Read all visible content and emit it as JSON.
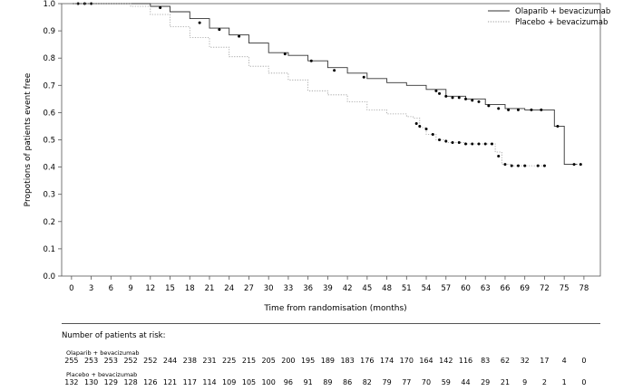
{
  "chart_data": {
    "type": "line",
    "title": "",
    "xlabel": "Time from randomisation (months)",
    "ylabel": "Propotions of patients event free",
    "xlim": [
      -1.5,
      80.5
    ],
    "ylim": [
      0,
      1.0
    ],
    "xticks": [
      0,
      3,
      6,
      9,
      12,
      15,
      18,
      21,
      24,
      27,
      30,
      33,
      36,
      39,
      42,
      45,
      48,
      51,
      54,
      57,
      60,
      63,
      66,
      69,
      72,
      75,
      78
    ],
    "yticks": [
      0.0,
      0.1,
      0.2,
      0.3,
      0.4,
      0.5,
      0.6,
      0.7,
      0.8,
      0.9,
      1.0
    ],
    "ytick_labels": [
      "0.0",
      "0.1",
      "0.2",
      "0.3",
      "0.4",
      "0.5",
      "0.6",
      "0.7",
      "0.8",
      "0.9",
      "1.0"
    ],
    "grid": false,
    "legend": "top-right",
    "series": [
      {
        "name": "Olaparib + bevacizumab",
        "color": "#333333",
        "dash": "solid",
        "points": [
          [
            0,
            1.0
          ],
          [
            10,
            1.0
          ],
          [
            12,
            0.99
          ],
          [
            15,
            0.97
          ],
          [
            18,
            0.945
          ],
          [
            21,
            0.91
          ],
          [
            24,
            0.885
          ],
          [
            27,
            0.855
          ],
          [
            30,
            0.82
          ],
          [
            33,
            0.81
          ],
          [
            36,
            0.79
          ],
          [
            39,
            0.765
          ],
          [
            42,
            0.745
          ],
          [
            45,
            0.725
          ],
          [
            48,
            0.71
          ],
          [
            51,
            0.7
          ],
          [
            54,
            0.685
          ],
          [
            57,
            0.66
          ],
          [
            60,
            0.65
          ],
          [
            63,
            0.63
          ],
          [
            66,
            0.615
          ],
          [
            69,
            0.61
          ],
          [
            72,
            0.61
          ],
          [
            73.5,
            0.55
          ],
          [
            75,
            0.41
          ],
          [
            77,
            0.41
          ]
        ],
        "censor": [
          [
            1,
            1.0
          ],
          [
            2,
            1.0
          ],
          [
            3,
            1.0
          ],
          [
            13.5,
            0.985
          ],
          [
            19.5,
            0.93
          ],
          [
            22.5,
            0.905
          ],
          [
            25.5,
            0.88
          ],
          [
            32.5,
            0.815
          ],
          [
            36.5,
            0.79
          ],
          [
            40,
            0.755
          ],
          [
            44.5,
            0.73
          ],
          [
            55.5,
            0.68
          ],
          [
            56,
            0.67
          ],
          [
            57,
            0.66
          ],
          [
            58,
            0.655
          ],
          [
            59,
            0.655
          ],
          [
            60,
            0.65
          ],
          [
            61,
            0.645
          ],
          [
            62,
            0.64
          ],
          [
            63.5,
            0.625
          ],
          [
            65,
            0.615
          ],
          [
            66.5,
            0.61
          ],
          [
            68,
            0.61
          ],
          [
            70,
            0.61
          ],
          [
            71.5,
            0.61
          ],
          [
            74,
            0.55
          ],
          [
            76.5,
            0.41
          ],
          [
            77.5,
            0.41
          ]
        ]
      },
      {
        "name": "Placebo + bevacizumab",
        "color": "#999999",
        "dash": "dotted",
        "points": [
          [
            0,
            1.0
          ],
          [
            9,
            0.99
          ],
          [
            12,
            0.96
          ],
          [
            15,
            0.915
          ],
          [
            18,
            0.875
          ],
          [
            21,
            0.84
          ],
          [
            24,
            0.805
          ],
          [
            27,
            0.77
          ],
          [
            30,
            0.745
          ],
          [
            33,
            0.72
          ],
          [
            36,
            0.68
          ],
          [
            39,
            0.665
          ],
          [
            42,
            0.64
          ],
          [
            45,
            0.61
          ],
          [
            48,
            0.595
          ],
          [
            51,
            0.585
          ],
          [
            52,
            0.58
          ],
          [
            53,
            0.545
          ],
          [
            54,
            0.52
          ],
          [
            55.5,
            0.5
          ],
          [
            57,
            0.49
          ],
          [
            60,
            0.485
          ],
          [
            63,
            0.485
          ],
          [
            64.5,
            0.455
          ],
          [
            65.5,
            0.41
          ],
          [
            67,
            0.405
          ],
          [
            72,
            0.405
          ]
        ],
        "censor": [
          [
            52.5,
            0.56
          ],
          [
            53,
            0.55
          ],
          [
            54,
            0.54
          ],
          [
            55,
            0.52
          ],
          [
            56,
            0.5
          ],
          [
            57,
            0.495
          ],
          [
            58,
            0.49
          ],
          [
            59,
            0.49
          ],
          [
            60,
            0.485
          ],
          [
            61,
            0.485
          ],
          [
            62,
            0.485
          ],
          [
            63,
            0.485
          ],
          [
            64,
            0.485
          ],
          [
            65,
            0.44
          ],
          [
            66,
            0.41
          ],
          [
            67,
            0.405
          ],
          [
            68,
            0.405
          ],
          [
            69,
            0.405
          ],
          [
            71,
            0.405
          ],
          [
            72,
            0.405
          ]
        ]
      }
    ]
  },
  "risk_table": {
    "title": "Number of patients at risk:",
    "groups": [
      {
        "label": "Olaparib + bevacizumab",
        "values": [
          "255",
          "253",
          "253",
          "252",
          "252",
          "244",
          "238",
          "231",
          "225",
          "215",
          "205",
          "200",
          "195",
          "189",
          "183",
          "176",
          "174",
          "170",
          "164",
          "142",
          "116",
          "83",
          "62",
          "32",
          "17",
          "4",
          "0"
        ]
      },
      {
        "label": "Placebo + bevacizumab",
        "values": [
          "132",
          "130",
          "129",
          "128",
          "126",
          "121",
          "117",
          "114",
          "109",
          "105",
          "100",
          "96",
          "91",
          "89",
          "86",
          "82",
          "79",
          "77",
          "70",
          "59",
          "44",
          "29",
          "21",
          "9",
          "2",
          "1",
          "0"
        ]
      }
    ]
  }
}
